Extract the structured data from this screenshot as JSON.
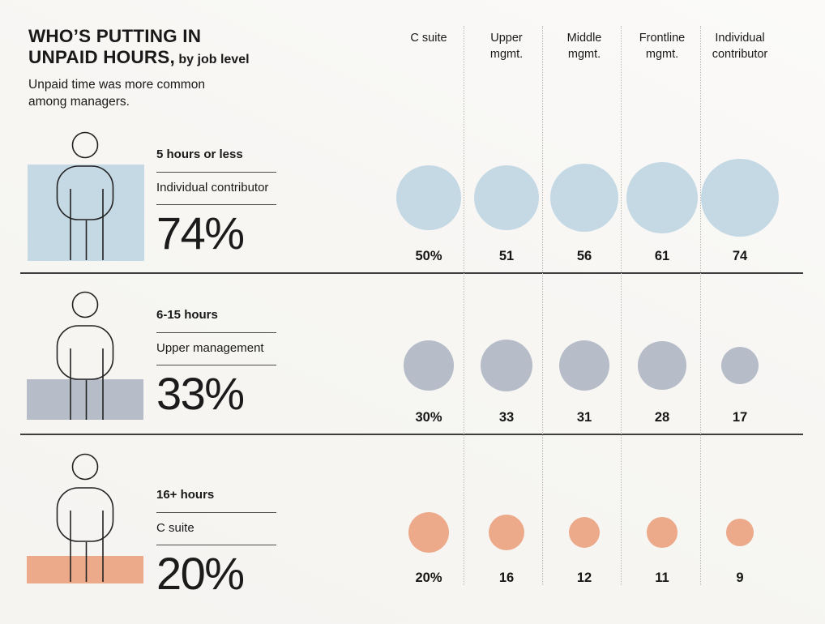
{
  "header": {
    "title_line1": "WHO’S PUTTING IN",
    "title_line2": "UNPAID HOURS,",
    "title_qualifier": " by job level",
    "subtitle_line1": "Unpaid time was more common",
    "subtitle_line2": "among managers."
  },
  "columns": [
    "C suite",
    "Upper mgmt.",
    "Middle mgmt.",
    "Frontline mgmt.",
    "Individual contributor"
  ],
  "rows": [
    {
      "hours_label": "5 hours or less",
      "group_label": "Individual contributor",
      "group_pct": "74%",
      "color": "#c5d9e5",
      "values": [
        50,
        51,
        56,
        61,
        74
      ],
      "value_labels": [
        "50%",
        "51",
        "56",
        "61",
        "74"
      ]
    },
    {
      "hours_label": "6-15 hours",
      "group_label": "Upper management",
      "group_pct": "33%",
      "color": "#b6bdc9",
      "values": [
        30,
        33,
        31,
        28,
        17
      ],
      "value_labels": [
        "30%",
        "33",
        "31",
        "28",
        "17"
      ]
    },
    {
      "hours_label": "16+ hours",
      "group_label": "C suite",
      "group_pct": "20%",
      "color": "#edaa8b",
      "values": [
        20,
        16,
        12,
        11,
        9
      ],
      "value_labels": [
        "20%",
        "16",
        "12",
        "11",
        "9"
      ]
    }
  ],
  "chart_data": {
    "type": "heatmap",
    "mark": "sized-circles",
    "encoding": "circle area proportional to percentage",
    "title": "WHO’S PUTTING IN UNPAID HOURS, by job level",
    "subtitle": "Unpaid time was more common among managers.",
    "categories": [
      "C suite",
      "Upper mgmt.",
      "Middle mgmt.",
      "Frontline mgmt.",
      "Individual contributor"
    ],
    "series": [
      {
        "name": "5 hours or less",
        "values": [
          50,
          51,
          56,
          61,
          74
        ],
        "color": "#c5d9e5",
        "highlight_group": "Individual contributor",
        "highlight_value": "74%"
      },
      {
        "name": "6-15 hours",
        "values": [
          30,
          33,
          31,
          28,
          17
        ],
        "color": "#b6bdc9",
        "highlight_group": "Upper management",
        "highlight_value": "33%"
      },
      {
        "name": "16+ hours",
        "values": [
          20,
          16,
          12,
          11,
          9
        ],
        "color": "#edaa8b",
        "highlight_group": "C suite",
        "highlight_value": "20%"
      }
    ],
    "unit": "%",
    "value_range": [
      9,
      74
    ],
    "grid": "dotted column separators, solid row separators",
    "legend_position": "left"
  }
}
